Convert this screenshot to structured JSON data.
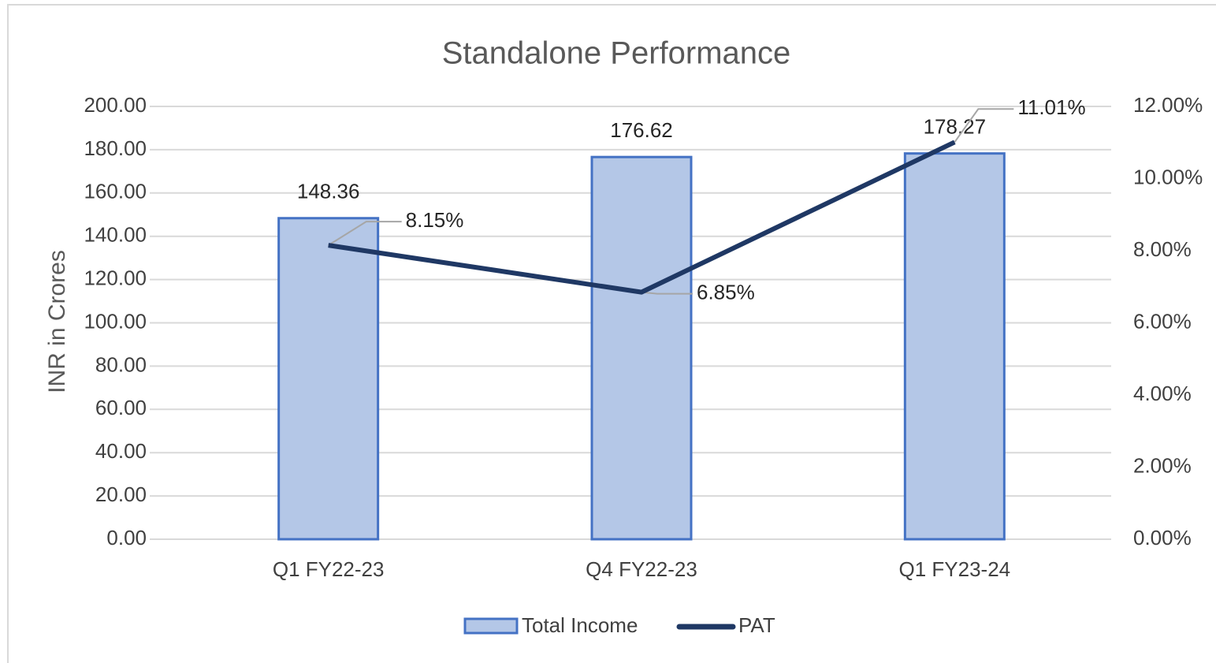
{
  "chart_data": {
    "type": "bar",
    "title": "Standalone Performance",
    "y_label": "INR in Crores",
    "categories": [
      "Q1 FY22-23",
      "Q4 FY22-23",
      "Q1 FY23-24"
    ],
    "series": [
      {
        "name": "Total Income",
        "type": "bar",
        "color": "#b4c7e7",
        "edge_color": "#4472c4",
        "values": [
          148.36,
          176.62,
          178.27
        ]
      },
      {
        "name": "PAT",
        "type": "line",
        "axis": "y2",
        "color": "#1f3864",
        "values": [
          8.15,
          6.85,
          11.01
        ],
        "value_labels": [
          "8.15%",
          "6.85%",
          "11.01%"
        ]
      }
    ],
    "ylim": [
      0,
      200
    ],
    "yticks": [
      {
        "value": 0,
        "label": "0.00"
      },
      {
        "value": 20,
        "label": "20.00"
      },
      {
        "value": 40,
        "label": "40.00"
      },
      {
        "value": 60,
        "label": "60.00"
      },
      {
        "value": 80,
        "label": "80.00"
      },
      {
        "value": 100,
        "label": "100.00"
      },
      {
        "value": 120,
        "label": "120.00"
      },
      {
        "value": 140,
        "label": "140.00"
      },
      {
        "value": 160,
        "label": "160.00"
      },
      {
        "value": 180,
        "label": "180.00"
      },
      {
        "value": 200,
        "label": "200.00"
      }
    ],
    "y2lim": [
      0,
      12
    ],
    "y2ticks": [
      {
        "value": 0,
        "label": "0.00%"
      },
      {
        "value": 2,
        "label": "2.00%"
      },
      {
        "value": 4,
        "label": "4.00%"
      },
      {
        "value": 6,
        "label": "6.00%"
      },
      {
        "value": 8,
        "label": "8.00%"
      },
      {
        "value": 10,
        "label": "10.00%"
      },
      {
        "value": 12,
        "label": "12.00%"
      }
    ],
    "grid": true,
    "legend": "bottom"
  }
}
